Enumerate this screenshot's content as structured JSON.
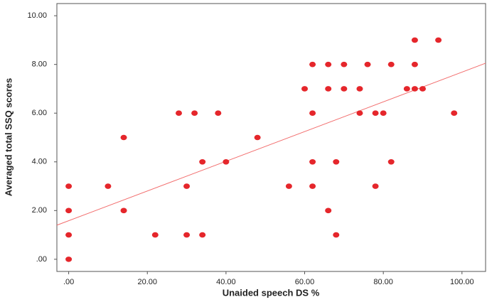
{
  "chart_data": {
    "type": "scatter",
    "xlabel": "Unaided speech DS %",
    "ylabel": "Averaged total SSQ scores",
    "color": "#e5262b",
    "x": [
      0,
      0,
      0,
      0,
      10,
      14,
      14,
      22,
      28,
      32,
      30,
      30,
      34,
      34,
      38,
      40,
      48,
      56,
      60,
      62,
      62,
      62,
      62,
      66,
      66,
      66,
      68,
      68,
      70,
      70,
      74,
      74,
      76,
      78,
      78,
      80,
      82,
      82,
      86,
      88,
      88,
      88,
      90,
      94,
      98
    ],
    "values": [
      0,
      1,
      2,
      3,
      3,
      5,
      2,
      1,
      6,
      6,
      3,
      1,
      4,
      1,
      6,
      4,
      5,
      3,
      7,
      8,
      6,
      4,
      3,
      8,
      7,
      2,
      4,
      1,
      8,
      7,
      7,
      6,
      8,
      6,
      3,
      6,
      8,
      4,
      7,
      9,
      8,
      7,
      7,
      9,
      6
    ],
    "fit_line": {
      "color": "#f26b6b",
      "x": [
        -3,
        106
      ],
      "y": [
        1.4,
        8.05
      ]
    },
    "xlim": [
      -3,
      106
    ],
    "ylim": [
      -0.5,
      10.5
    ],
    "xticks": [
      {
        "value": 0,
        "label": ".00"
      },
      {
        "value": 20,
        "label": "20.00"
      },
      {
        "value": 40,
        "label": "40.00"
      },
      {
        "value": 60,
        "label": "60.00"
      },
      {
        "value": 80,
        "label": "80.00"
      },
      {
        "value": 100,
        "label": "100.00"
      }
    ],
    "yticks": [
      {
        "value": 0,
        "label": ".00"
      },
      {
        "value": 2,
        "label": "2.00"
      },
      {
        "value": 4,
        "label": "4.00"
      },
      {
        "value": 6,
        "label": "6.00"
      },
      {
        "value": 8,
        "label": "8.00"
      },
      {
        "value": 10,
        "label": "10.00"
      }
    ]
  }
}
